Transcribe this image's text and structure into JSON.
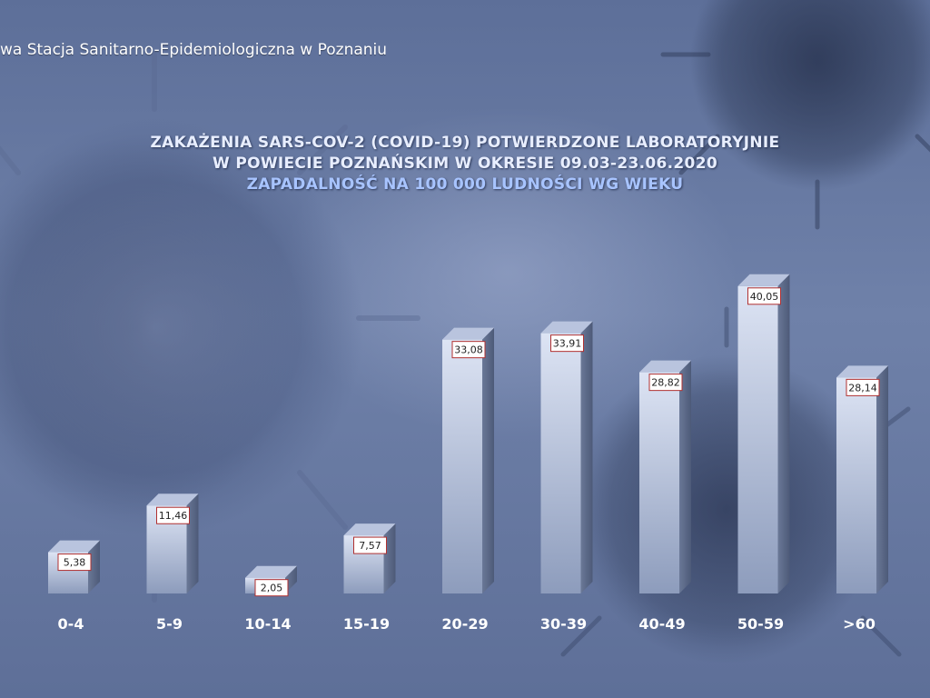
{
  "header": {
    "institution": "wa Stacja Sanitarno-Epidemiologiczna w Poznaniu"
  },
  "chart_data": {
    "type": "bar",
    "title": "ZAKAŻENIA SARS-COV-2 (COVID-19) POTWIERDZONE LABORATORYJNIE",
    "title_line2": "W POWIECIE POZNAŃSKIM W OKRESIE 09.03-23.06.2020",
    "subtitle": "ZAPADALNOŚĆ NA 100 000 LUDNOŚCI WG WIEKU",
    "categories": [
      "0-4",
      "5-9",
      "10-14",
      "15-19",
      "20-29",
      "30-39",
      "40-49",
      "50-59",
      ">60"
    ],
    "values": [
      5.38,
      11.46,
      2.05,
      7.57,
      33.08,
      33.91,
      28.82,
      40.05,
      28.14
    ],
    "value_labels": [
      "5,38",
      "11,46",
      "2,05",
      "7,57",
      "33,08",
      "33,91",
      "28,82",
      "40,05",
      "28,14"
    ],
    "xlabel": "",
    "ylabel": "",
    "ylim": [
      0,
      45
    ],
    "grid": false,
    "legend": "none",
    "colors": {
      "bar_front_top": "#dde4f4",
      "bar_front_bottom": "#8d9cbc",
      "bar_side": "#4d5a78",
      "bar_top": "#b9c4de",
      "label_border": "#b03030",
      "label_fill": "#ffffff"
    }
  }
}
